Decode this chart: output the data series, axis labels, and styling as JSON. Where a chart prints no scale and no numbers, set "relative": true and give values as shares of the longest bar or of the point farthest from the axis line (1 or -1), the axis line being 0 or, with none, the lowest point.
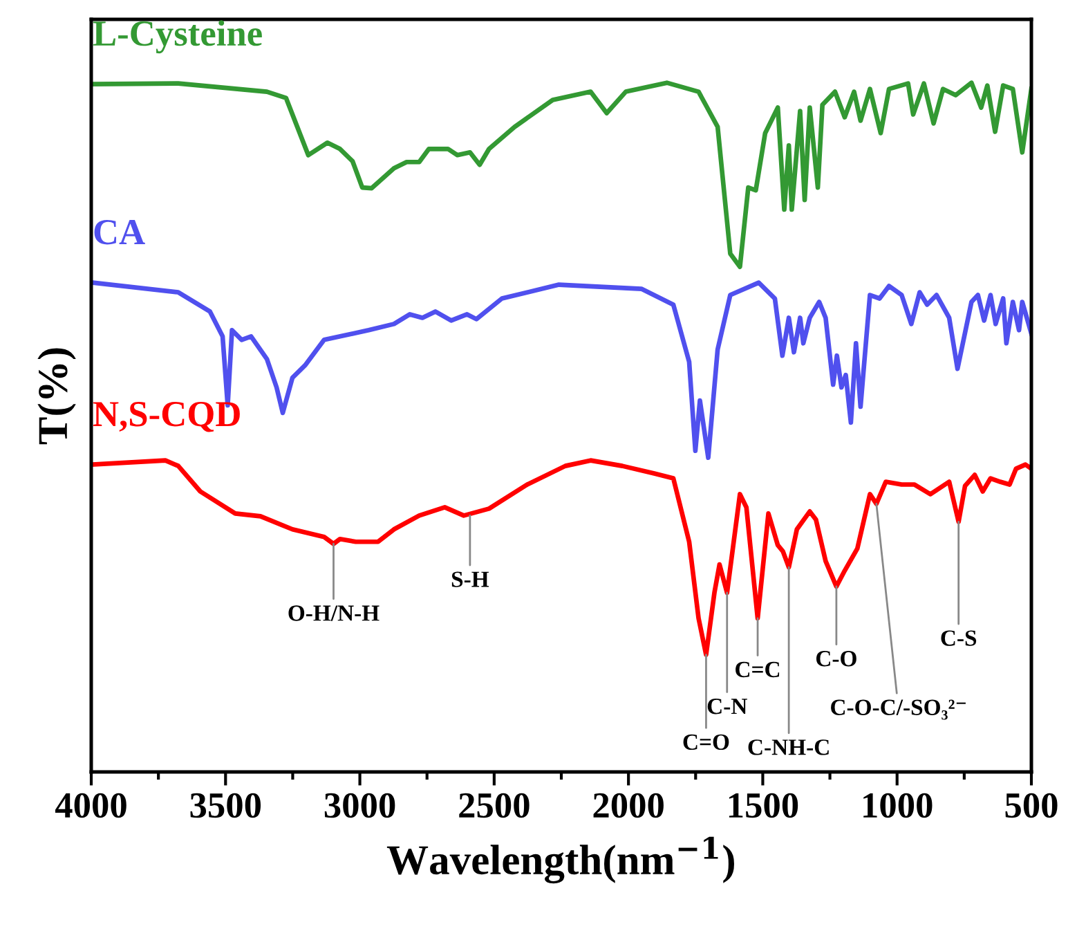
{
  "chart_data": {
    "type": "line",
    "relative": true,
    "xlabel": "Wavelength(nm$^{−1}$)",
    "ylabel": "T(%)",
    "xlim": [
      4000,
      500
    ],
    "xticks": [
      4000,
      {
        "value": 3750,
        "label": null
      },
      3500,
      {
        "value": 3250,
        "label": null
      },
      3000,
      {
        "value": 2750,
        "label": null
      },
      2500,
      {
        "value": 2250,
        "label": null
      },
      2000,
      {
        "value": 1750,
        "label": null
      },
      1500,
      {
        "value": 1250,
        "label": null
      },
      1000,
      {
        "value": 750,
        "label": null
      },
      500
    ],
    "tick_labels": "x",
    "grid": false,
    "legend": false,
    "marker": "none",
    "line_style": "solid",
    "series": [
      {
        "name": "L-Cysteine",
        "color": "#339933",
        "x": [
          3995,
          3676,
          3346,
          3275,
          3192,
          3121,
          3074,
          3027,
          2991,
          2956,
          2873,
          2826,
          2779,
          2743,
          2672,
          2637,
          2590,
          2554,
          2519,
          2424,
          2282,
          2141,
          2081,
          2010,
          1857,
          1739,
          1668,
          1621,
          1585,
          1554,
          1526,
          1491,
          1444,
          1420,
          1403,
          1392,
          1361,
          1344,
          1325,
          1295,
          1278,
          1231,
          1195,
          1160,
          1136,
          1101,
          1061,
          1030,
          959,
          940,
          900,
          864,
          829,
          782,
          723,
          687,
          664,
          635,
          605,
          569,
          534,
          500
        ],
        "values": [
          0.998,
          0.999,
          0.987,
          0.978,
          0.895,
          0.913,
          0.904,
          0.886,
          0.848,
          0.847,
          0.876,
          0.885,
          0.885,
          0.904,
          0.904,
          0.895,
          0.899,
          0.881,
          0.904,
          0.936,
          0.975,
          0.987,
          0.956,
          0.987,
          1.0,
          0.987,
          0.936,
          0.752,
          0.733,
          0.848,
          0.844,
          0.927,
          0.964,
          0.816,
          0.909,
          0.816,
          0.959,
          0.83,
          0.964,
          0.848,
          0.968,
          0.987,
          0.95,
          0.987,
          0.945,
          0.991,
          0.927,
          0.991,
          0.999,
          0.954,
          0.999,
          0.941,
          0.991,
          0.982,
          1.0,
          0.964,
          0.996,
          0.929,
          0.996,
          0.991,
          0.899,
          0.991
        ]
      },
      {
        "name": "CA",
        "color": "#5050ee",
        "x": [
          3995,
          3676,
          3558,
          3511,
          3492,
          3476,
          3440,
          3405,
          3346,
          3310,
          3287,
          3251,
          3204,
          3133,
          2967,
          2873,
          2814,
          2767,
          2719,
          2660,
          2601,
          2566,
          2471,
          2259,
          1952,
          1833,
          1774,
          1751,
          1734,
          1703,
          1668,
          1621,
          1515,
          1455,
          1427,
          1403,
          1384,
          1361,
          1349,
          1325,
          1290,
          1266,
          1238,
          1224,
          1207,
          1191,
          1172,
          1153,
          1136,
          1101,
          1065,
          1030,
          983,
          947,
          916,
          888,
          853,
          806,
          775,
          723,
          699,
          676,
          652,
          633,
          605,
          593,
          569,
          546,
          534,
          500
        ],
        "values": [
          0.71,
          0.696,
          0.668,
          0.632,
          0.532,
          0.641,
          0.627,
          0.632,
          0.599,
          0.558,
          0.521,
          0.572,
          0.59,
          0.627,
          0.641,
          0.65,
          0.664,
          0.659,
          0.668,
          0.655,
          0.664,
          0.657,
          0.687,
          0.707,
          0.701,
          0.678,
          0.595,
          0.466,
          0.539,
          0.456,
          0.613,
          0.692,
          0.71,
          0.687,
          0.604,
          0.659,
          0.609,
          0.659,
          0.622,
          0.659,
          0.682,
          0.659,
          0.562,
          0.604,
          0.558,
          0.576,
          0.507,
          0.622,
          0.53,
          0.692,
          0.687,
          0.705,
          0.692,
          0.65,
          0.696,
          0.678,
          0.692,
          0.659,
          0.585,
          0.682,
          0.692,
          0.655,
          0.692,
          0.65,
          0.687,
          0.622,
          0.682,
          0.641,
          0.682,
          0.636
        ]
      },
      {
        "name": "N,S-CQD",
        "color": "#ff0000",
        "x": [
          3995,
          3724,
          3676,
          3594,
          3464,
          3370,
          3251,
          3133,
          3098,
          3074,
          3015,
          2932,
          2873,
          2779,
          2684,
          2613,
          2519,
          2377,
          2235,
          2141,
          2023,
          1904,
          1833,
          1774,
          1739,
          1711,
          1680,
          1661,
          1633,
          1585,
          1561,
          1519,
          1479,
          1444,
          1425,
          1403,
          1373,
          1325,
          1302,
          1266,
          1226,
          1195,
          1148,
          1101,
          1077,
          1042,
          983,
          935,
          876,
          806,
          771,
          747,
          711,
          681,
          652,
          616,
          581,
          557,
          522,
          500
        ],
        "values": [
          0.446,
          0.452,
          0.444,
          0.407,
          0.375,
          0.371,
          0.352,
          0.341,
          0.331,
          0.338,
          0.334,
          0.334,
          0.352,
          0.372,
          0.384,
          0.372,
          0.382,
          0.417,
          0.444,
          0.452,
          0.444,
          0.433,
          0.426,
          0.334,
          0.223,
          0.17,
          0.26,
          0.301,
          0.26,
          0.403,
          0.384,
          0.223,
          0.375,
          0.329,
          0.32,
          0.297,
          0.352,
          0.378,
          0.366,
          0.306,
          0.269,
          0.292,
          0.324,
          0.403,
          0.389,
          0.421,
          0.417,
          0.417,
          0.403,
          0.421,
          0.363,
          0.415,
          0.431,
          0.407,
          0.426,
          0.421,
          0.417,
          0.44,
          0.446,
          0.44
        ]
      }
    ],
    "annotations": [
      {
        "text": "O-H/N-H",
        "x": 3098,
        "y": 0.331
      },
      {
        "text": "S-H",
        "x": 2590,
        "y": 0.372
      },
      {
        "text": "C=O",
        "x": 1711,
        "y": 0.17
      },
      {
        "text": "C-N",
        "x": 1633,
        "y": 0.26
      },
      {
        "text": "C=C",
        "x": 1519,
        "y": 0.223
      },
      {
        "text": "C-NH-C",
        "x": 1403,
        "y": 0.297
      },
      {
        "text": "C-O",
        "x": 1226,
        "y": 0.269
      },
      {
        "text": "C-O-C/-SO₃²⁻",
        "x": 1077,
        "y": 0.389
      },
      {
        "text": "C-S",
        "x": 771,
        "y": 0.363
      }
    ]
  }
}
